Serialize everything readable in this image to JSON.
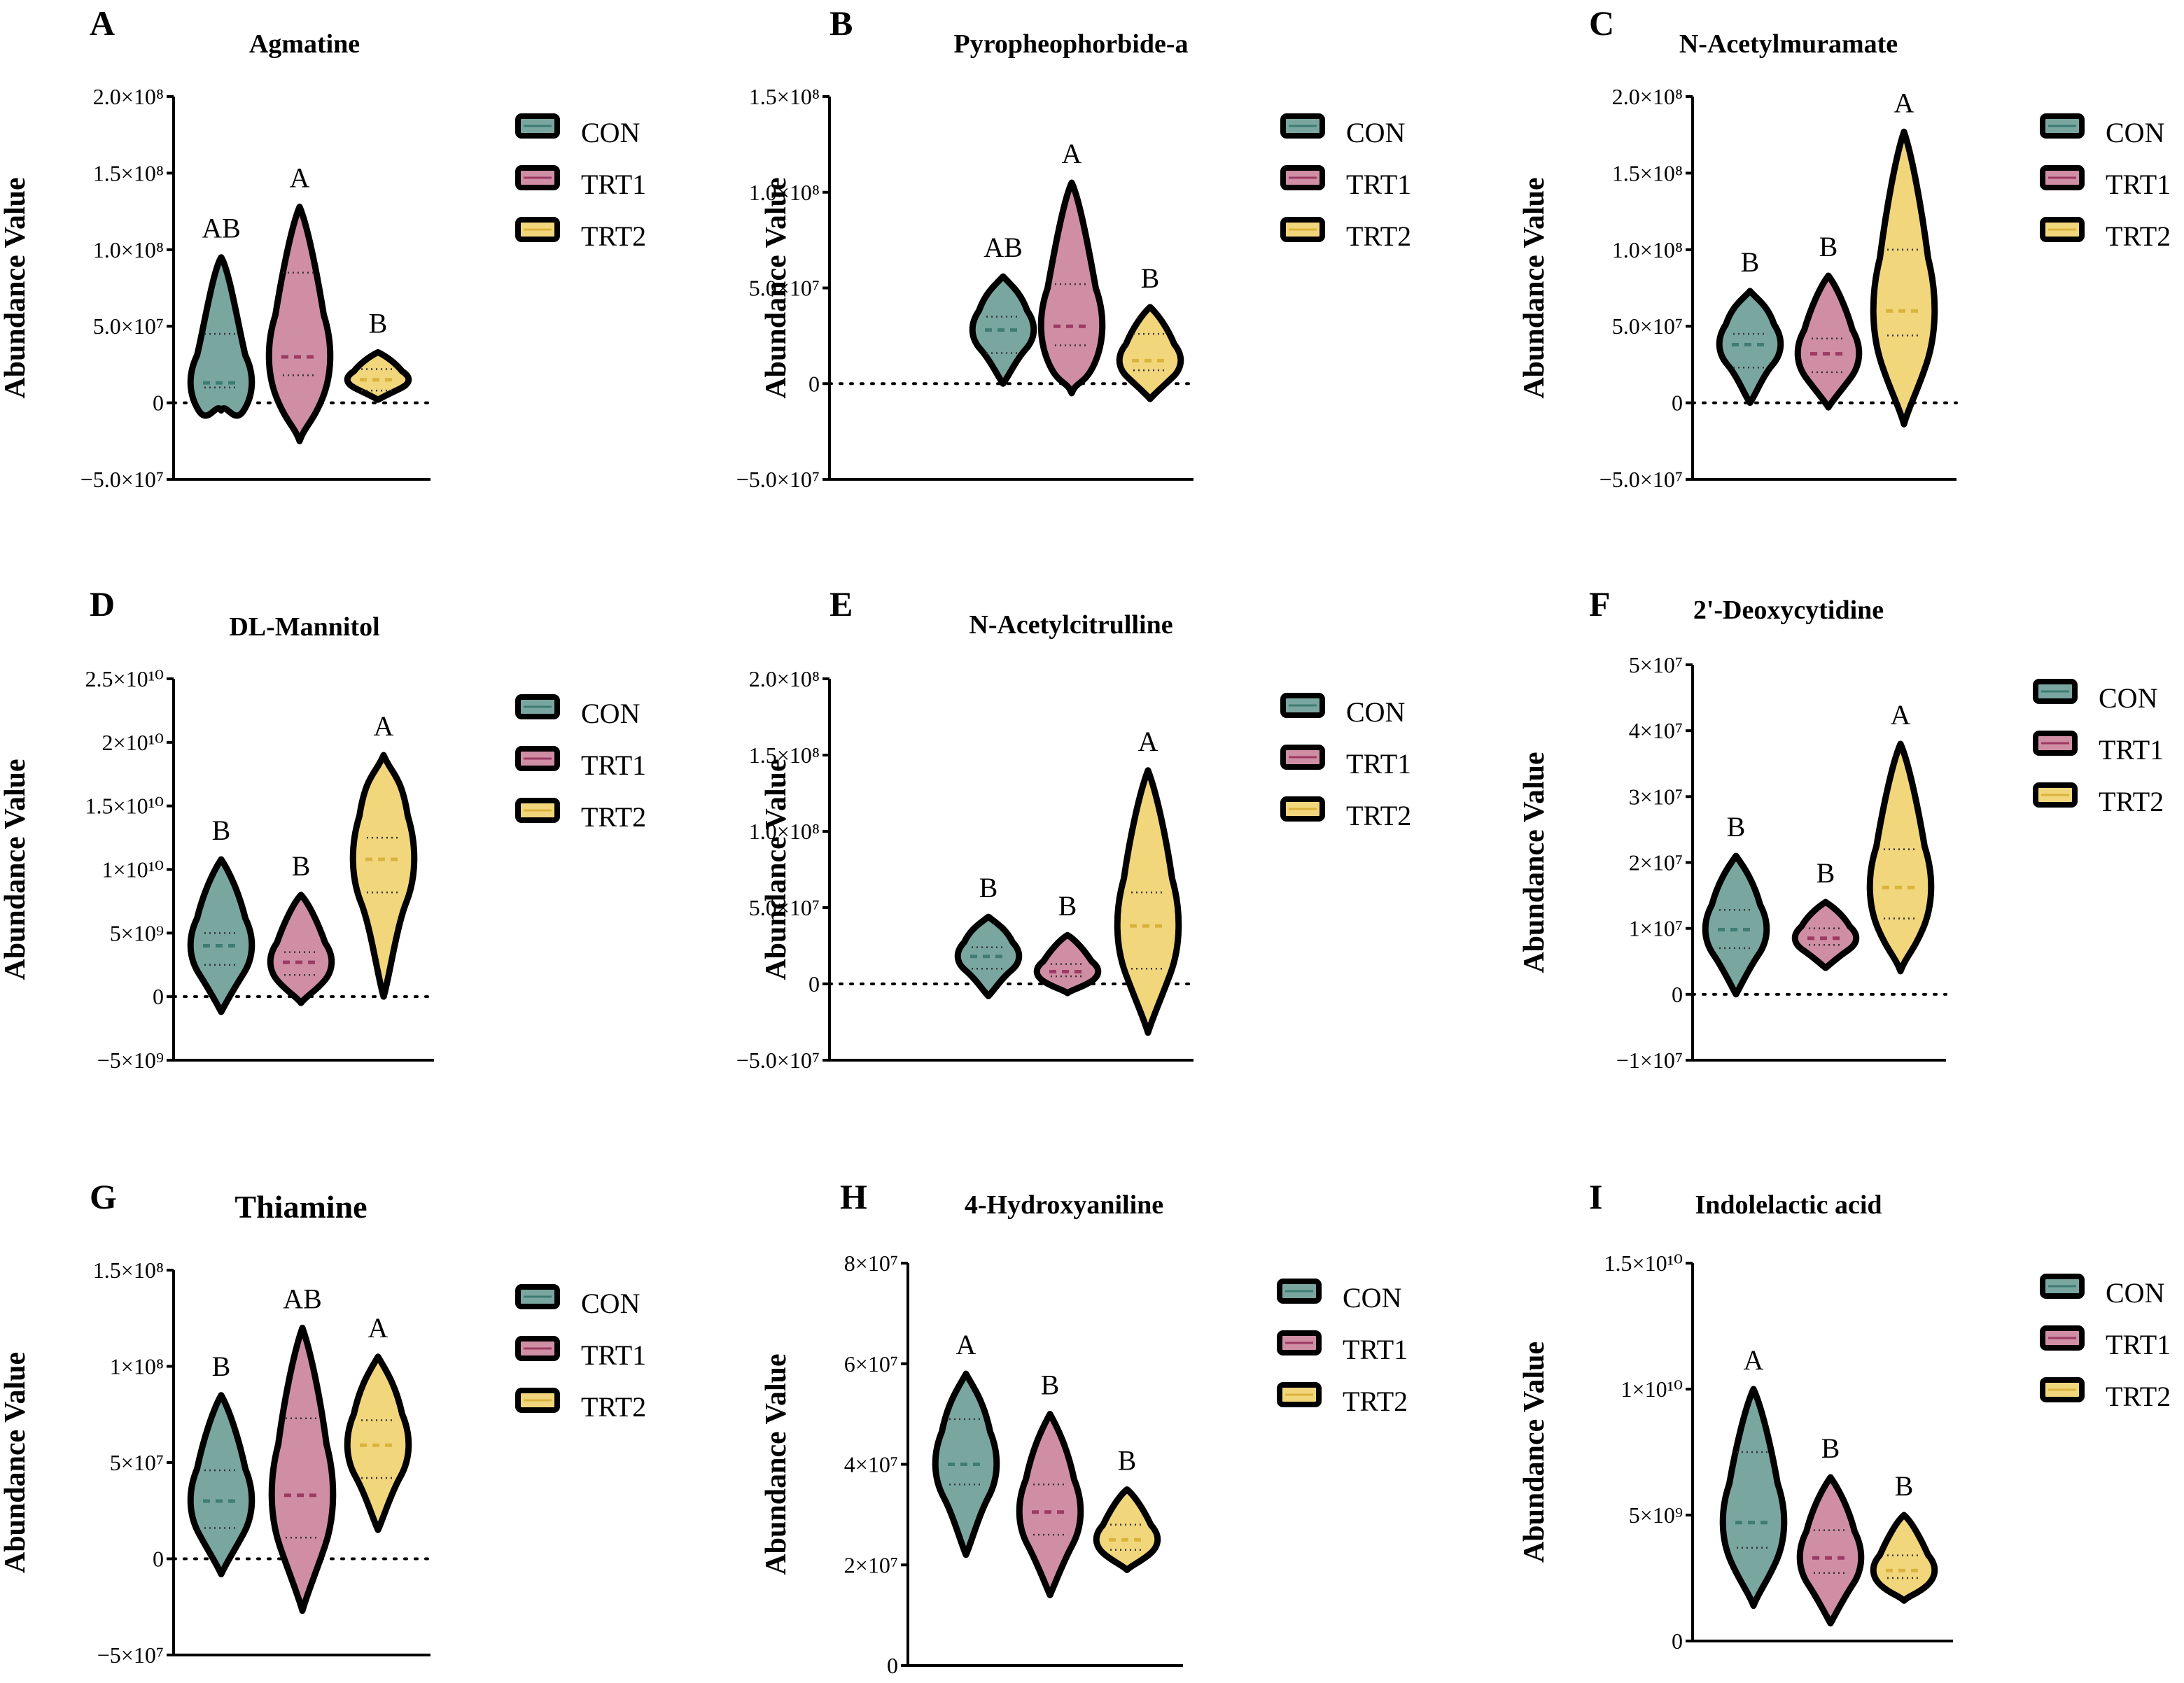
{
  "legend": [
    "CON",
    "TRT1",
    "TRT2"
  ],
  "colors": {
    "CON": "#7aa6a0",
    "TRT1": "#cf8ea4",
    "TRT2": "#f2d67c",
    "CON_line": "#3f7c73",
    "TRT1_line": "#9c3a63",
    "TRT2_line": "#d9b43d",
    "outline": "#000000"
  },
  "chart_data": [
    {
      "panel": "A",
      "type": "violin",
      "title": "Agmatine",
      "ylabel": "Abundance Value",
      "ylim": [
        -50000000.0,
        200000000.0
      ],
      "yticks": [
        -50000000.0,
        0,
        50000000.0,
        100000000.0,
        150000000.0,
        200000000.0
      ],
      "ytick_labels": [
        "−5.0×10⁷",
        "0",
        "5.0×10⁷",
        "1.0×10⁸",
        "1.5×10⁸",
        "2.0×10⁸"
      ],
      "categories": [
        "CON",
        "TRT1",
        "TRT2"
      ],
      "series": [
        {
          "name": "CON",
          "min": -5000000.0,
          "max": 95000000.0,
          "median": 13000000.0,
          "q1": 10000000.0,
          "q3": 45000000.0,
          "letter": "AB"
        },
        {
          "name": "TRT1",
          "min": -25000000.0,
          "max": 128000000.0,
          "median": 30000000.0,
          "q1": 18000000.0,
          "q3": 85000000.0,
          "letter": "A"
        },
        {
          "name": "TRT2",
          "min": 2000000.0,
          "max": 33000000.0,
          "median": 15000000.0,
          "q1": 8000000.0,
          "q3": 22000000.0,
          "letter": "B"
        }
      ]
    },
    {
      "panel": "B",
      "type": "violin",
      "title": "Pyropheophorbide-a",
      "ylabel": "Abundance Value",
      "ylim": [
        -50000000.0,
        150000000.0
      ],
      "yticks": [
        -50000000.0,
        0,
        50000000.0,
        100000000.0,
        150000000.0
      ],
      "ytick_labels": [
        "−5.0×10⁷",
        "0",
        "5.0×10⁷",
        "1.0×10⁸",
        "1.5×10⁸"
      ],
      "categories": [
        "CON",
        "TRT1",
        "TRT2"
      ],
      "series": [
        {
          "name": "CON",
          "min": 0,
          "max": 56000000.0,
          "median": 28000000.0,
          "q1": 16000000.0,
          "q3": 35000000.0,
          "letter": "AB"
        },
        {
          "name": "TRT1",
          "min": -5000000.0,
          "max": 105000000.0,
          "median": 30000000.0,
          "q1": 20000000.0,
          "q3": 52000000.0,
          "letter": "A"
        },
        {
          "name": "TRT2",
          "min": -8000000.0,
          "max": 40000000.0,
          "median": 12000000.0,
          "q1": 7000000.0,
          "q3": 26000000.0,
          "letter": "B"
        }
      ]
    },
    {
      "panel": "C",
      "type": "violin",
      "title": "N-Acetylmuramate",
      "ylabel": "Abundance Value",
      "ylim": [
        -50000000.0,
        200000000.0
      ],
      "yticks": [
        -50000000.0,
        0,
        50000000.0,
        100000000.0,
        150000000.0,
        200000000.0
      ],
      "ytick_labels": [
        "−5.0×10⁷",
        "0",
        "5.0×10⁷",
        "1.0×10⁸",
        "1.5×10⁸",
        "2.0×10⁸"
      ],
      "categories": [
        "CON",
        "TRT1",
        "TRT2"
      ],
      "series": [
        {
          "name": "CON",
          "min": 0,
          "max": 73000000.0,
          "median": 38000000.0,
          "q1": 23000000.0,
          "q3": 45000000.0,
          "letter": "B"
        },
        {
          "name": "TRT1",
          "min": -3000000.0,
          "max": 83000000.0,
          "median": 32000000.0,
          "q1": 20000000.0,
          "q3": 42000000.0,
          "letter": "B"
        },
        {
          "name": "TRT2",
          "min": -14000000.0,
          "max": 177000000.0,
          "median": 60000000.0,
          "q1": 44000000.0,
          "q3": 100000000.0,
          "letter": "A"
        }
      ]
    },
    {
      "panel": "D",
      "type": "violin",
      "title": "DL-Mannitol",
      "ylabel": "Abundance Value",
      "ylim": [
        -5000000000.0,
        25000000000.0
      ],
      "yticks": [
        -5000000000.0,
        0,
        5000000000.0,
        10000000000.0,
        15000000000.0,
        20000000000.0,
        25000000000.0
      ],
      "ytick_labels": [
        "−5×10⁹",
        "0",
        "5×10⁹",
        "1×10¹⁰",
        "1.5×10¹⁰",
        "2×10¹⁰",
        "2.5×10¹⁰"
      ],
      "categories": [
        "CON",
        "TRT1",
        "TRT2"
      ],
      "series": [
        {
          "name": "CON",
          "min": -1200000000.0,
          "max": 10800000000.0,
          "median": 4000000000.0,
          "q1": 2500000000.0,
          "q3": 5000000000.0,
          "letter": "B"
        },
        {
          "name": "TRT1",
          "min": -500000000.0,
          "max": 8000000000.0,
          "median": 2700000000.0,
          "q1": 1700000000.0,
          "q3": 3500000000.0,
          "letter": "B"
        },
        {
          "name": "TRT2",
          "min": 0,
          "max": 19000000000.0,
          "median": 10800000000.0,
          "q1": 8200000000.0,
          "q3": 12500000000.0,
          "letter": "A"
        }
      ]
    },
    {
      "panel": "E",
      "type": "violin",
      "title": "N-Acetylcitrulline",
      "ylabel": "Abundance Value",
      "ylim": [
        -50000000.0,
        200000000.0
      ],
      "yticks": [
        -50000000.0,
        0,
        50000000.0,
        100000000.0,
        150000000.0,
        200000000.0
      ],
      "ytick_labels": [
        "−5.0×10⁷",
        "0",
        "5.0×10⁷",
        "1.0×10⁸",
        "1.5×10⁸",
        "2.0×10⁸"
      ],
      "categories": [
        "CON",
        "TRT1",
        "TRT2"
      ],
      "series": [
        {
          "name": "CON",
          "min": -8000000.0,
          "max": 44000000.0,
          "median": 18000000.0,
          "q1": 10000000.0,
          "q3": 24000000.0,
          "letter": "B"
        },
        {
          "name": "TRT1",
          "min": -6000000.0,
          "max": 32000000.0,
          "median": 8000000.0,
          "q1": 5000000.0,
          "q3": 13000000.0,
          "letter": "B"
        },
        {
          "name": "TRT2",
          "min": -32000000.0,
          "max": 140000000.0,
          "median": 38000000.0,
          "q1": 10000000.0,
          "q3": 60000000.0,
          "letter": "A"
        }
      ]
    },
    {
      "panel": "F",
      "type": "violin",
      "title": "2'-Deoxycytidine",
      "ylabel": "Abundance Value",
      "ylim": [
        -10000000.0,
        50000000.0
      ],
      "yticks": [
        -10000000.0,
        0,
        10000000.0,
        20000000.0,
        30000000.0,
        40000000.0,
        50000000.0
      ],
      "ytick_labels": [
        "−1×10⁷",
        "0",
        "1×10⁷",
        "2×10⁷",
        "3×10⁷",
        "4×10⁷",
        "5×10⁷"
      ],
      "categories": [
        "CON",
        "TRT1",
        "TRT2"
      ],
      "series": [
        {
          "name": "CON",
          "min": 0,
          "max": 21000000.0,
          "median": 9800000.0,
          "q1": 7000000.0,
          "q3": 12800000.0,
          "letter": "B"
        },
        {
          "name": "TRT1",
          "min": 4000000.0,
          "max": 14000000.0,
          "median": 8500000.0,
          "q1": 7500000.0,
          "q3": 10000000.0,
          "letter": "B"
        },
        {
          "name": "TRT2",
          "min": 3500000.0,
          "max": 38000000.0,
          "median": 16200000.0,
          "q1": 11500000.0,
          "q3": 22000000.0,
          "letter": "A"
        }
      ]
    },
    {
      "panel": "G",
      "type": "violin",
      "title": "Thiamine",
      "ylabel": "Abundance Value",
      "ylim": [
        -50000000.0,
        150000000.0
      ],
      "yticks": [
        -50000000.0,
        0,
        50000000.0,
        100000000.0,
        150000000.0
      ],
      "ytick_labels": [
        "−5×10⁷",
        "0",
        "5×10⁷",
        "1×10⁸",
        "1.5×10⁸"
      ],
      "categories": [
        "CON",
        "TRT1",
        "TRT2"
      ],
      "series": [
        {
          "name": "CON",
          "min": -8000000.0,
          "max": 85000000.0,
          "median": 30000000.0,
          "q1": 16000000.0,
          "q3": 46000000.0,
          "letter": "B"
        },
        {
          "name": "TRT1",
          "min": -27000000.0,
          "max": 120000000.0,
          "median": 33000000.0,
          "q1": 11000000.0,
          "q3": 73000000.0,
          "letter": "AB"
        },
        {
          "name": "TRT2",
          "min": 15000000.0,
          "max": 105000000.0,
          "median": 59000000.0,
          "q1": 42000000.0,
          "q3": 72000000.0,
          "letter": "A"
        }
      ]
    },
    {
      "panel": "H",
      "type": "violin",
      "title": "4-Hydroxyaniline",
      "ylabel": "Abundance Value",
      "ylim": [
        0,
        80000000.0
      ],
      "yticks": [
        0,
        20000000.0,
        40000000.0,
        60000000.0,
        80000000.0
      ],
      "ytick_labels": [
        "0",
        "2×10⁷",
        "4×10⁷",
        "6×10⁷",
        "8×10⁷"
      ],
      "categories": [
        "CON",
        "TRT1",
        "TRT2"
      ],
      "series": [
        {
          "name": "CON",
          "min": 22000000.0,
          "max": 58000000.0,
          "median": 40000000.0,
          "q1": 36000000.0,
          "q3": 49000000.0,
          "letter": "A"
        },
        {
          "name": "TRT1",
          "min": 14000000.0,
          "max": 50000000.0,
          "median": 30500000.0,
          "q1": 26000000.0,
          "q3": 36000000.0,
          "letter": "B"
        },
        {
          "name": "TRT2",
          "min": 19000000.0,
          "max": 35000000.0,
          "median": 25000000.0,
          "q1": 23000000.0,
          "q3": 28000000.0,
          "letter": "B"
        }
      ]
    },
    {
      "panel": "I",
      "type": "violin",
      "title": "Indolelactic acid",
      "ylabel": "Abundance Value",
      "ylim": [
        0,
        15000000000.0
      ],
      "yticks": [
        0,
        5000000000.0,
        10000000000.0,
        15000000000.0
      ],
      "ytick_labels": [
        "0",
        "5×10⁹",
        "1×10¹⁰",
        "1.5×10¹⁰"
      ],
      "categories": [
        "CON",
        "TRT1",
        "TRT2"
      ],
      "series": [
        {
          "name": "CON",
          "min": 1400000000.0,
          "max": 10000000000.0,
          "median": 4700000000.0,
          "q1": 3700000000.0,
          "q3": 7500000000.0,
          "letter": "A"
        },
        {
          "name": "TRT1",
          "min": 700000000.0,
          "max": 6500000000.0,
          "median": 3300000000.0,
          "q1": 2700000000.0,
          "q3": 4400000000.0,
          "letter": "B"
        },
        {
          "name": "TRT2",
          "min": 1600000000.0,
          "max": 5000000000.0,
          "median": 2800000000.0,
          "q1": 2500000000.0,
          "q3": 3400000000.0,
          "letter": "B"
        }
      ]
    }
  ]
}
